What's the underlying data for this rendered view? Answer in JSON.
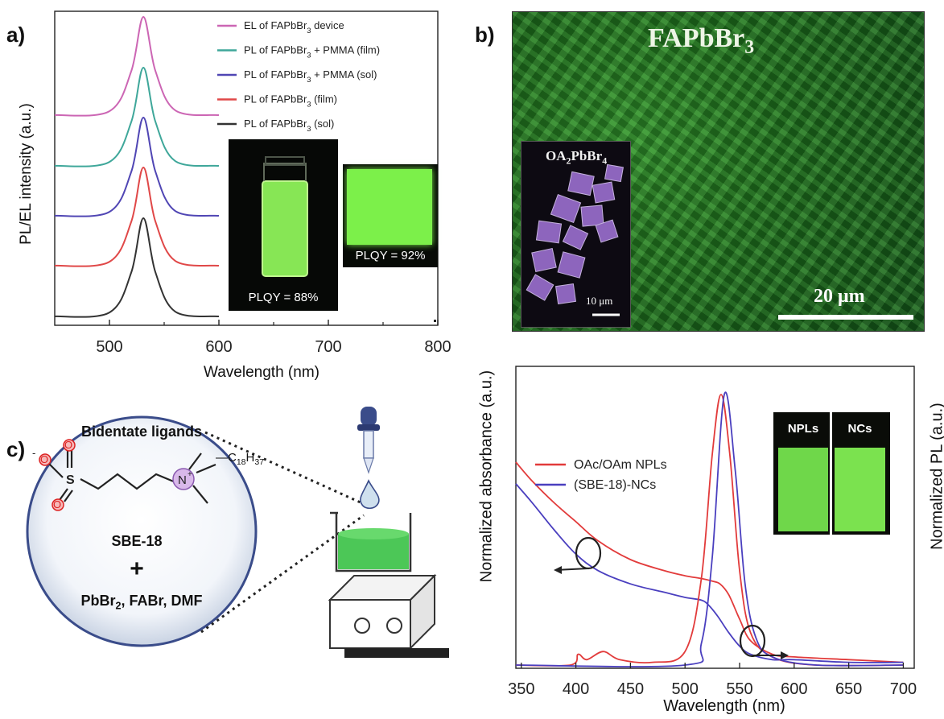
{
  "panel_labels": {
    "a": "a)",
    "b": "b)",
    "c": "c)"
  },
  "panel_a": {
    "ylabel": "PL/EL intensity (a.u.)",
    "xlabel": "Wavelength (nm)",
    "xticks": [
      "500",
      "600",
      "700",
      "800"
    ],
    "legend": [
      {
        "label": "EL of FAPbBr3 device",
        "color": "#cc66b4"
      },
      {
        "label": "PL of FAPbBr3 + PMMA (film)",
        "color": "#3fa79a"
      },
      {
        "label": "PL of FAPbBr3 + PMMA (sol)",
        "color": "#5046b4"
      },
      {
        "label": "PL of FAPbBr3 (film)",
        "color": "#e04848"
      },
      {
        "label": "PL of FAPbBr3 (sol)",
        "color": "#333333"
      }
    ],
    "photo_vial_caption": "PLQY = 88%",
    "photo_film_caption": "PLQY = 92%"
  },
  "panel_b": {
    "title": "FAPbBr3",
    "inset_title": "OA2PbBr4",
    "inset_scale": "10 μm",
    "scale_bar": "20 μm"
  },
  "panel_c_scheme": {
    "circle_title": "Bidentate ligands",
    "molecule_name": "SBE-18",
    "alkyl_chain": "C18H37",
    "plus": "+",
    "reagents": "PbBr2, FABr,  DMF"
  },
  "panel_c_chart": {
    "ylabel_left": "Normalized absorbance (a.u.)",
    "ylabel_right": "Normalized PL (a.u.)",
    "xlabel": "Wavelength (nm)",
    "xticks": [
      "350",
      "400",
      "450",
      "500",
      "550",
      "600",
      "650",
      "700"
    ],
    "legend": [
      {
        "label": "OAc/OAm NPLs",
        "color": "#e23b3b"
      },
      {
        "label": "(SBE-18)-NCs",
        "color": "#4a3fbf"
      }
    ],
    "photo_labels": [
      "NPLs",
      "NCs"
    ]
  },
  "colors": {
    "axis": "#222222",
    "green_glow": "#7cf04a",
    "sem_green": "#1f6b1e",
    "sem_purple": "#9b6fd0"
  },
  "chart_data": [
    {
      "type": "line",
      "x": [
        450,
        500,
        520,
        531,
        542,
        560,
        600
      ],
      "xlim": [
        450,
        800
      ],
      "series": [
        {
          "name": "EL of FAPbBr3 device",
          "values": [
            0.0,
            0.04,
            0.45,
            1.0,
            0.45,
            0.05,
            0.0
          ]
        },
        {
          "name": "PL of FAPbBr3 + PMMA (film)",
          "values": [
            0.0,
            0.04,
            0.45,
            1.0,
            0.45,
            0.05,
            0.0
          ]
        },
        {
          "name": "PL of FAPbBr3 + PMMA (sol)",
          "values": [
            0.0,
            0.04,
            0.45,
            1.0,
            0.45,
            0.05,
            0.0
          ]
        },
        {
          "name": "PL of FAPbBr3 (film)",
          "values": [
            0.0,
            0.04,
            0.45,
            1.0,
            0.45,
            0.05,
            0.0
          ]
        },
        {
          "name": "PL of FAPbBr3 (sol)",
          "values": [
            0.0,
            0.04,
            0.45,
            1.0,
            0.45,
            0.05,
            0.0
          ]
        }
      ]
    },
    {
      "type": "line",
      "xlim": [
        345,
        710
      ],
      "series": [
        {
          "name": "OAc/OAm NPLs absorbance",
          "x": [
            345,
            360,
            380,
            400,
            420,
            450,
            480,
            500,
            515,
            525,
            532,
            540,
            550,
            560,
            580,
            600,
            650,
            700
          ],
          "values": [
            0.75,
            0.68,
            0.6,
            0.53,
            0.46,
            0.39,
            0.35,
            0.33,
            0.32,
            0.31,
            0.3,
            0.26,
            0.17,
            0.09,
            0.04,
            0.03,
            0.02,
            0.01
          ]
        },
        {
          "name": "(SBE-18)-NCs absorbance",
          "x": [
            345,
            360,
            380,
            400,
            420,
            450,
            480,
            500,
            515,
            522,
            530,
            540,
            550,
            560,
            580,
            600,
            650,
            700
          ],
          "values": [
            0.67,
            0.6,
            0.5,
            0.41,
            0.35,
            0.3,
            0.27,
            0.25,
            0.24,
            0.22,
            0.18,
            0.12,
            0.07,
            0.04,
            0.02,
            0.02,
            0.01,
            0.01
          ]
        },
        {
          "name": "OAc/OAm NPLs PL",
          "x": [
            345,
            395,
            402,
            410,
            425,
            440,
            470,
            500,
            515,
            525,
            533,
            541,
            550,
            560,
            580,
            620,
            700
          ],
          "values": [
            0.0,
            0.0,
            0.04,
            0.02,
            0.05,
            0.02,
            0.01,
            0.05,
            0.32,
            0.78,
            1.0,
            0.78,
            0.35,
            0.12,
            0.03,
            0.0,
            0.0
          ]
        },
        {
          "name": "(SBE-18)-NCs PL",
          "x": [
            345,
            500,
            515,
            525,
            536,
            546,
            555,
            565,
            580,
            620,
            700
          ],
          "values": [
            0.0,
            0.0,
            0.08,
            0.4,
            1.0,
            0.72,
            0.3,
            0.1,
            0.03,
            0.0,
            0.0
          ]
        }
      ]
    }
  ]
}
